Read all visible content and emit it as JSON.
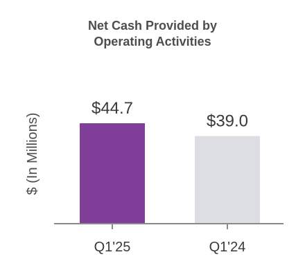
{
  "chart_data": {
    "type": "bar",
    "title_lines": [
      "Net Cash Provided by",
      "Operating Activities"
    ],
    "ylabel": "$ (In Millions)",
    "xlabel": "",
    "categories": [
      "Q1'25",
      "Q1'24"
    ],
    "values": [
      44.7,
      39.0
    ],
    "data_labels": [
      "$44.7",
      "$39.0"
    ],
    "colors": [
      "#7f3f98",
      "#dddde4"
    ],
    "axis_color": "#8a8a8a",
    "ylim": [
      0,
      50
    ],
    "grid": false,
    "legend": "none"
  }
}
